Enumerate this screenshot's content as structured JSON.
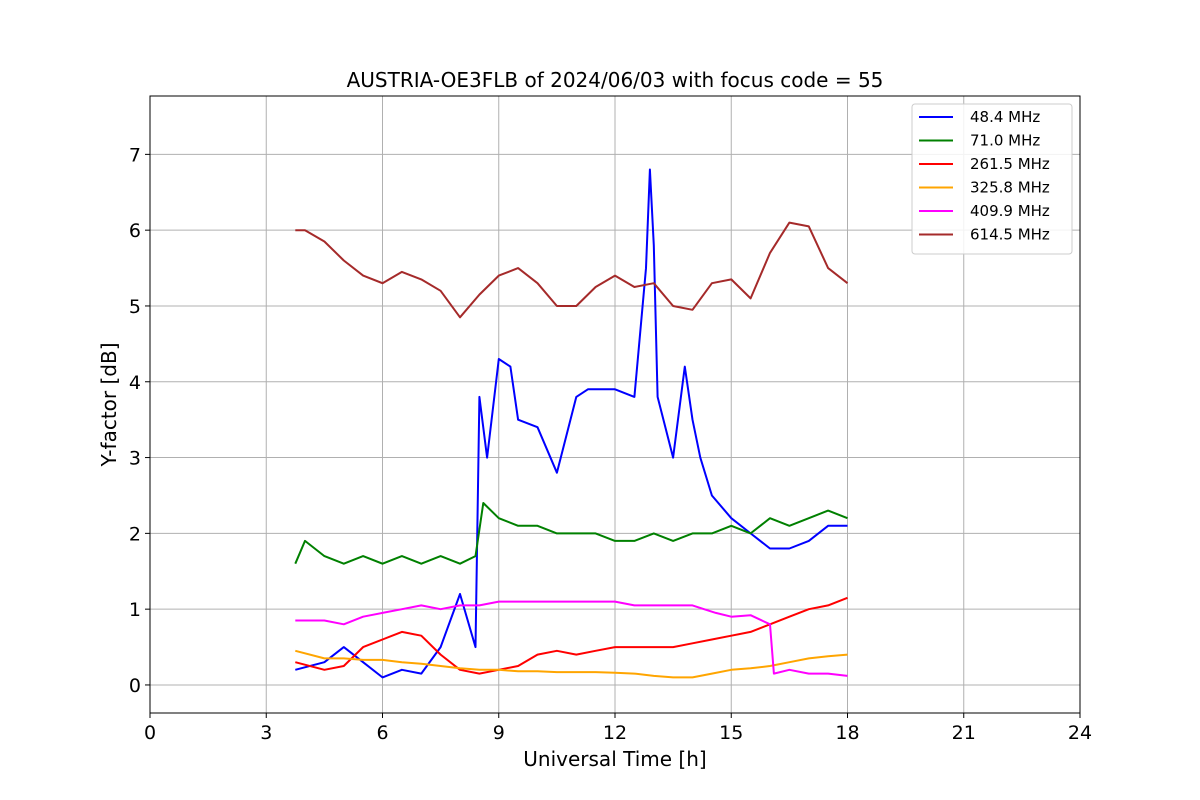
{
  "chart_data": {
    "type": "line",
    "title": "AUSTRIA-OE3FLB of 2024/06/03 with focus code = 55",
    "xlabel": "Universal Time [h]",
    "ylabel": "Y-factor [dB]",
    "xlim": [
      0,
      24
    ],
    "ylim": [
      -0.37,
      7.77
    ],
    "xticks": [
      0,
      3,
      6,
      9,
      12,
      15,
      18,
      21,
      24
    ],
    "yticks": [
      0,
      1,
      2,
      3,
      4,
      5,
      6,
      7
    ],
    "grid": true,
    "legend_position": "top-right",
    "series": [
      {
        "name": " 48.4 MHz",
        "color": "#0000ff",
        "x": [
          3.75,
          4.5,
          5.0,
          5.5,
          6.0,
          6.5,
          7.0,
          7.5,
          8.0,
          8.4,
          8.5,
          8.7,
          9.0,
          9.3,
          9.5,
          10.0,
          10.5,
          11.0,
          11.3,
          11.5,
          12.0,
          12.5,
          12.8,
          12.9,
          13.0,
          13.1,
          13.5,
          13.8,
          14.0,
          14.2,
          14.5,
          15.0,
          15.5,
          16.0,
          16.5,
          17.0,
          17.5,
          18.0
        ],
        "y": [
          0.2,
          0.3,
          0.5,
          0.3,
          0.1,
          0.2,
          0.15,
          0.5,
          1.2,
          0.5,
          3.8,
          3.0,
          4.3,
          4.2,
          3.5,
          3.4,
          2.8,
          3.8,
          3.9,
          3.9,
          3.9,
          3.8,
          5.5,
          6.8,
          5.8,
          3.8,
          3.0,
          4.2,
          3.5,
          3.0,
          2.5,
          2.2,
          2.0,
          1.8,
          1.8,
          1.9,
          2.1,
          2.1
        ]
      },
      {
        "name": " 71.0 MHz",
        "color": "#008000",
        "x": [
          3.75,
          4.0,
          4.5,
          5.0,
          5.5,
          6.0,
          6.5,
          7.0,
          7.5,
          8.0,
          8.4,
          8.6,
          9.0,
          9.5,
          10.0,
          10.5,
          11.0,
          11.5,
          12.0,
          12.5,
          13.0,
          13.5,
          14.0,
          14.5,
          15.0,
          15.5,
          16.0,
          16.5,
          17.0,
          17.5,
          18.0
        ],
        "y": [
          1.6,
          1.9,
          1.7,
          1.6,
          1.7,
          1.6,
          1.7,
          1.6,
          1.7,
          1.6,
          1.7,
          2.4,
          2.2,
          2.1,
          2.1,
          2.0,
          2.0,
          2.0,
          1.9,
          1.9,
          2.0,
          1.9,
          2.0,
          2.0,
          2.1,
          2.0,
          2.2,
          2.1,
          2.2,
          2.3,
          2.2
        ]
      },
      {
        "name": "261.5 MHz",
        "color": "#ff0000",
        "x": [
          3.75,
          4.5,
          5.0,
          5.5,
          6.0,
          6.5,
          7.0,
          7.5,
          8.0,
          8.5,
          9.0,
          9.5,
          10.0,
          10.5,
          11.0,
          11.5,
          12.0,
          12.5,
          13.0,
          13.5,
          14.0,
          14.5,
          15.0,
          15.5,
          16.0,
          16.5,
          17.0,
          17.5,
          18.0
        ],
        "y": [
          0.3,
          0.2,
          0.25,
          0.5,
          0.6,
          0.7,
          0.65,
          0.4,
          0.2,
          0.15,
          0.2,
          0.25,
          0.4,
          0.45,
          0.4,
          0.45,
          0.5,
          0.5,
          0.5,
          0.5,
          0.55,
          0.6,
          0.65,
          0.7,
          0.8,
          0.9,
          1.0,
          1.05,
          1.15
        ]
      },
      {
        "name": "325.8 MHz",
        "color": "#ffa500",
        "x": [
          3.75,
          4.5,
          5.0,
          5.5,
          6.0,
          6.5,
          7.0,
          7.5,
          8.0,
          8.5,
          9.0,
          9.5,
          10.0,
          10.5,
          11.0,
          11.5,
          12.0,
          12.5,
          13.0,
          13.5,
          14.0,
          14.5,
          15.0,
          15.5,
          16.0,
          16.5,
          17.0,
          17.5,
          18.0
        ],
        "y": [
          0.45,
          0.35,
          0.35,
          0.33,
          0.33,
          0.3,
          0.28,
          0.25,
          0.22,
          0.2,
          0.2,
          0.18,
          0.18,
          0.17,
          0.17,
          0.17,
          0.16,
          0.15,
          0.12,
          0.1,
          0.1,
          0.15,
          0.2,
          0.22,
          0.25,
          0.3,
          0.35,
          0.38,
          0.4
        ]
      },
      {
        "name": "409.9 MHz",
        "color": "#ff00ff",
        "x": [
          3.75,
          4.5,
          5.0,
          5.5,
          6.0,
          6.5,
          7.0,
          7.5,
          8.0,
          8.5,
          9.0,
          9.5,
          10.0,
          10.5,
          11.0,
          11.5,
          12.0,
          12.5,
          13.0,
          13.5,
          14.0,
          14.3,
          14.6,
          15.0,
          15.5,
          16.0,
          16.1,
          16.5,
          17.0,
          17.5,
          18.0
        ],
        "y": [
          0.85,
          0.85,
          0.8,
          0.9,
          0.95,
          1.0,
          1.05,
          1.0,
          1.05,
          1.05,
          1.1,
          1.1,
          1.1,
          1.1,
          1.1,
          1.1,
          1.1,
          1.05,
          1.05,
          1.05,
          1.05,
          1.0,
          0.95,
          0.9,
          0.92,
          0.8,
          0.15,
          0.2,
          0.15,
          0.15,
          0.12
        ]
      },
      {
        "name": "614.5 MHz",
        "color": "#a52a2a",
        "x": [
          3.75,
          4.0,
          4.5,
          5.0,
          5.5,
          6.0,
          6.5,
          7.0,
          7.5,
          8.0,
          8.5,
          9.0,
          9.5,
          10.0,
          10.5,
          11.0,
          11.5,
          12.0,
          12.5,
          13.0,
          13.5,
          14.0,
          14.5,
          15.0,
          15.5,
          16.0,
          16.5,
          17.0,
          17.5,
          18.0
        ],
        "y": [
          6.0,
          6.0,
          5.85,
          5.6,
          5.4,
          5.3,
          5.45,
          5.35,
          5.2,
          4.85,
          5.15,
          5.4,
          5.5,
          5.3,
          5.0,
          5.0,
          5.25,
          5.4,
          5.25,
          5.3,
          5.0,
          4.95,
          5.3,
          5.35,
          5.1,
          5.7,
          6.1,
          6.05,
          5.5,
          5.3
        ]
      }
    ]
  }
}
